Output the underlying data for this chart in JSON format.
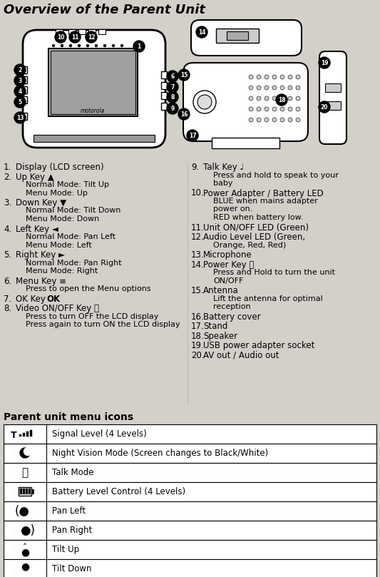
{
  "title": "Overview of the Parent Unit",
  "bg_color": "#d3d0ca",
  "title_fontsize": 13,
  "left_items": [
    [
      "1.",
      "Display (LCD screen)",
      []
    ],
    [
      "2.",
      "Up Key ▲",
      [
        "Normal Mode: Tilt Up",
        "Menu Mode: Up"
      ]
    ],
    [
      "3.",
      "Down Key ▼",
      [
        "Normal Mode: Tilt Down",
        "Menu Mode: Down"
      ]
    ],
    [
      "4.",
      "Left Key ◄",
      [
        "Normal Mode: Pan Left",
        "Menu Mode: Left"
      ]
    ],
    [
      "5.",
      "Right Key ►",
      [
        "Normal Mode: Pan Right",
        "Menu Mode: Right"
      ]
    ],
    [
      "6.",
      "Menu Key ≡",
      [
        "Press to open the Menu options"
      ]
    ],
    [
      "7.",
      "OK Key",
      []
    ],
    [
      "8.",
      "Video ON/OFF Key ⬜",
      [
        "Press to turn OFF the LCD display",
        "Press again to turn ON the LCD display"
      ]
    ]
  ],
  "right_items": [
    [
      "9.",
      "Talk Key ♩",
      [
        "Press and hold to speak to your",
        "baby"
      ]
    ],
    [
      "10.",
      "Power Adapter / Battery LED",
      [
        "BLUE when mains adapter",
        "power on.",
        "RED when battery low."
      ]
    ],
    [
      "11.",
      "Unit ON/OFF LED (Green)",
      []
    ],
    [
      "12.",
      "Audio Level LED (Green,",
      [
        "Orange, Red, Red)"
      ]
    ],
    [
      "13.",
      "Microphone",
      []
    ],
    [
      "14.",
      "Power Key ⏻",
      [
        "Press and Hold to turn the unit",
        "ON/OFF"
      ]
    ],
    [
      "15.",
      "Antenna",
      [
        "Lift the antenna for optimal",
        "reception"
      ]
    ],
    [
      "16.",
      "Battery cover",
      []
    ],
    [
      "17.",
      "Stand",
      []
    ],
    [
      "18.",
      "Speaker",
      []
    ],
    [
      "19.",
      "USB power adapter socket",
      []
    ],
    [
      "20.",
      "AV out / Audio out",
      []
    ]
  ],
  "table_title": "Parent unit menu icons",
  "table_descriptions": [
    "Signal Level (4 Levels)",
    "Night Vision Mode (Screen changes to Black/White)",
    "Talk Mode",
    "Battery Level Control (4 Levels)",
    "Pan Left",
    "Pan Right",
    "Tilt Up",
    "Tilt Down"
  ],
  "callout_positions": [
    [
      85,
      52,
      "10"
    ],
    [
      105,
      52,
      "11"
    ],
    [
      128,
      52,
      "12"
    ],
    [
      195,
      65,
      "1"
    ],
    [
      28,
      98,
      "2"
    ],
    [
      28,
      113,
      "3"
    ],
    [
      28,
      128,
      "4"
    ],
    [
      28,
      143,
      "5"
    ],
    [
      28,
      165,
      "13"
    ],
    [
      242,
      107,
      "6"
    ],
    [
      242,
      122,
      "7"
    ],
    [
      242,
      136,
      "8"
    ],
    [
      242,
      152,
      "9"
    ],
    [
      283,
      45,
      "14"
    ],
    [
      258,
      105,
      "15"
    ],
    [
      258,
      160,
      "16"
    ],
    [
      270,
      190,
      "17"
    ],
    [
      395,
      140,
      "18"
    ],
    [
      455,
      88,
      "19"
    ],
    [
      455,
      150,
      "20"
    ]
  ]
}
